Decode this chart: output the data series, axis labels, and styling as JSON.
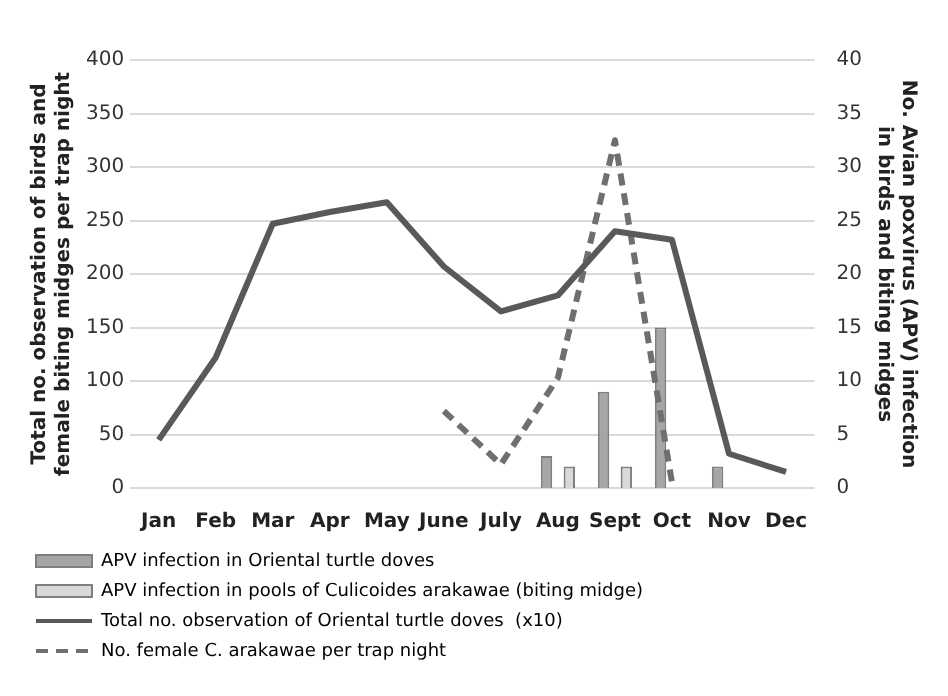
{
  "chart_data": {
    "type": "bar",
    "categories": [
      "Jan",
      "Feb",
      "Mar",
      "Apr",
      "May",
      "June",
      "July",
      "Aug",
      "Sept",
      "Oct",
      "Nov",
      "Dec"
    ],
    "ylabel": "Total no. observation of birds and female biting midges per trap night",
    "y2label": "No. Avian poxvirus (APV) infection in birds and biting midges",
    "ylim": [
      0,
      400
    ],
    "yticks": [
      0,
      50,
      100,
      150,
      200,
      250,
      300,
      350,
      400
    ],
    "y2lim": [
      0,
      40
    ],
    "y2ticks": [
      0,
      5,
      10,
      15,
      20,
      25,
      30,
      35,
      40
    ],
    "grid": "y",
    "legend": "bottom",
    "series": [
      {
        "name": "APV infection in Oriental turtle doves",
        "axis": "y2",
        "color": "#a6a6a6",
        "values": [
          null,
          null,
          null,
          null,
          null,
          null,
          null,
          3,
          9,
          15,
          2,
          null
        ]
      },
      {
        "name": "APV infection in pools of Culicoides arakawae (biting midge)",
        "axis": "y2",
        "color": "#d9d9d9",
        "values": [
          null,
          null,
          null,
          null,
          null,
          null,
          null,
          2,
          2,
          null,
          null,
          null
        ]
      },
      {
        "name": "Total no. observation of Oriental turtle doves  (x10)",
        "type": "line",
        "color": "#595959",
        "line_style": "solid",
        "values": [
          45,
          122,
          247,
          258,
          267,
          207,
          165,
          180,
          240,
          232,
          32,
          15
        ]
      },
      {
        "name": "No. female C. arakawae per trap night",
        "type": "line",
        "color": "#6f6f6f",
        "line_style": "dashed",
        "values": [
          null,
          null,
          null,
          null,
          null,
          72,
          22,
          103,
          325,
          5,
          null,
          null
        ]
      }
    ]
  }
}
